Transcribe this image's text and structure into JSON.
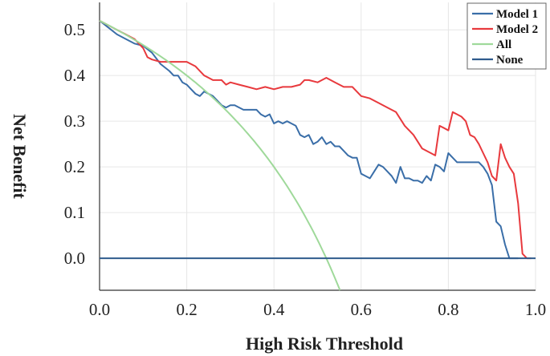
{
  "chart_data": {
    "type": "line",
    "title": "",
    "xlabel": "High Risk Threshold",
    "ylabel": "Net Benefit",
    "xlim": [
      0.0,
      1.0
    ],
    "ylim": [
      -0.07,
      0.56
    ],
    "xticks": [
      0.0,
      0.2,
      0.4,
      0.6,
      0.8,
      1.0
    ],
    "xtick_labels": [
      "0.0",
      "0.2",
      "0.4",
      "0.6",
      "0.8",
      "1.0"
    ],
    "yticks": [
      0.0,
      0.1,
      0.2,
      0.3,
      0.4,
      0.5
    ],
    "ytick_labels": [
      "0.0",
      "0.1",
      "0.2",
      "0.3",
      "0.4",
      "0.5"
    ],
    "grid": true,
    "legend_position": "top-right",
    "series": [
      {
        "name": "Model 1",
        "color": "#3a6ea8",
        "x": [
          0.0,
          0.02,
          0.04,
          0.06,
          0.08,
          0.1,
          0.12,
          0.14,
          0.16,
          0.17,
          0.18,
          0.19,
          0.2,
          0.21,
          0.22,
          0.23,
          0.24,
          0.25,
          0.26,
          0.27,
          0.28,
          0.29,
          0.3,
          0.31,
          0.32,
          0.33,
          0.34,
          0.35,
          0.36,
          0.37,
          0.38,
          0.39,
          0.4,
          0.41,
          0.42,
          0.43,
          0.44,
          0.45,
          0.46,
          0.47,
          0.48,
          0.49,
          0.5,
          0.51,
          0.52,
          0.53,
          0.54,
          0.55,
          0.56,
          0.57,
          0.58,
          0.59,
          0.6,
          0.61,
          0.62,
          0.63,
          0.64,
          0.65,
          0.66,
          0.67,
          0.68,
          0.69,
          0.7,
          0.71,
          0.72,
          0.73,
          0.74,
          0.75,
          0.76,
          0.77,
          0.78,
          0.79,
          0.8,
          0.81,
          0.82,
          0.83,
          0.84,
          0.85,
          0.86,
          0.87,
          0.88,
          0.89,
          0.9,
          0.91,
          0.92,
          0.93,
          0.94,
          0.95,
          0.96
        ],
        "y": [
          0.52,
          0.505,
          0.49,
          0.48,
          0.47,
          0.465,
          0.45,
          0.425,
          0.41,
          0.4,
          0.4,
          0.385,
          0.38,
          0.37,
          0.36,
          0.355,
          0.365,
          0.36,
          0.355,
          0.345,
          0.335,
          0.33,
          0.335,
          0.335,
          0.33,
          0.325,
          0.325,
          0.325,
          0.325,
          0.315,
          0.31,
          0.315,
          0.295,
          0.3,
          0.295,
          0.3,
          0.295,
          0.29,
          0.27,
          0.265,
          0.27,
          0.25,
          0.255,
          0.265,
          0.25,
          0.255,
          0.245,
          0.245,
          0.235,
          0.225,
          0.22,
          0.22,
          0.185,
          0.18,
          0.175,
          0.19,
          0.205,
          0.2,
          0.19,
          0.18,
          0.165,
          0.2,
          0.175,
          0.175,
          0.17,
          0.17,
          0.165,
          0.18,
          0.17,
          0.205,
          0.2,
          0.19,
          0.23,
          0.22,
          0.21,
          0.21,
          0.21,
          0.21,
          0.21,
          0.21,
          0.2,
          0.185,
          0.16,
          0.08,
          0.07,
          0.03,
          0.0,
          0.0,
          0.0
        ]
      },
      {
        "name": "Model 2",
        "color": "#e8393d",
        "x": [
          0.0,
          0.02,
          0.04,
          0.06,
          0.08,
          0.1,
          0.11,
          0.12,
          0.14,
          0.16,
          0.18,
          0.2,
          0.22,
          0.24,
          0.25,
          0.26,
          0.28,
          0.29,
          0.3,
          0.32,
          0.34,
          0.36,
          0.38,
          0.4,
          0.42,
          0.44,
          0.46,
          0.47,
          0.48,
          0.5,
          0.52,
          0.54,
          0.56,
          0.58,
          0.6,
          0.62,
          0.64,
          0.66,
          0.68,
          0.7,
          0.72,
          0.74,
          0.76,
          0.77,
          0.78,
          0.79,
          0.8,
          0.81,
          0.82,
          0.83,
          0.84,
          0.85,
          0.86,
          0.87,
          0.88,
          0.89,
          0.9,
          0.91,
          0.92,
          0.93,
          0.94,
          0.95,
          0.96,
          0.97,
          0.98,
          0.99
        ],
        "y": [
          0.52,
          0.51,
          0.5,
          0.49,
          0.48,
          0.46,
          0.44,
          0.435,
          0.43,
          0.43,
          0.43,
          0.43,
          0.42,
          0.4,
          0.395,
          0.39,
          0.39,
          0.38,
          0.385,
          0.38,
          0.375,
          0.37,
          0.375,
          0.37,
          0.375,
          0.375,
          0.38,
          0.39,
          0.39,
          0.385,
          0.395,
          0.385,
          0.375,
          0.375,
          0.355,
          0.35,
          0.34,
          0.33,
          0.32,
          0.29,
          0.27,
          0.24,
          0.23,
          0.225,
          0.29,
          0.285,
          0.28,
          0.32,
          0.315,
          0.31,
          0.3,
          0.27,
          0.265,
          0.25,
          0.23,
          0.21,
          0.18,
          0.17,
          0.25,
          0.22,
          0.2,
          0.185,
          0.12,
          0.01,
          0.0,
          0.0
        ]
      },
      {
        "name": "All",
        "color": "#9fd99a",
        "formula": "0.52 - (1 - 0.52) * t / (1 - t)"
      },
      {
        "name": "None",
        "color": "#2f5b8d",
        "x": [
          0.0,
          1.0
        ],
        "y": [
          0.0,
          0.0
        ]
      }
    ]
  }
}
